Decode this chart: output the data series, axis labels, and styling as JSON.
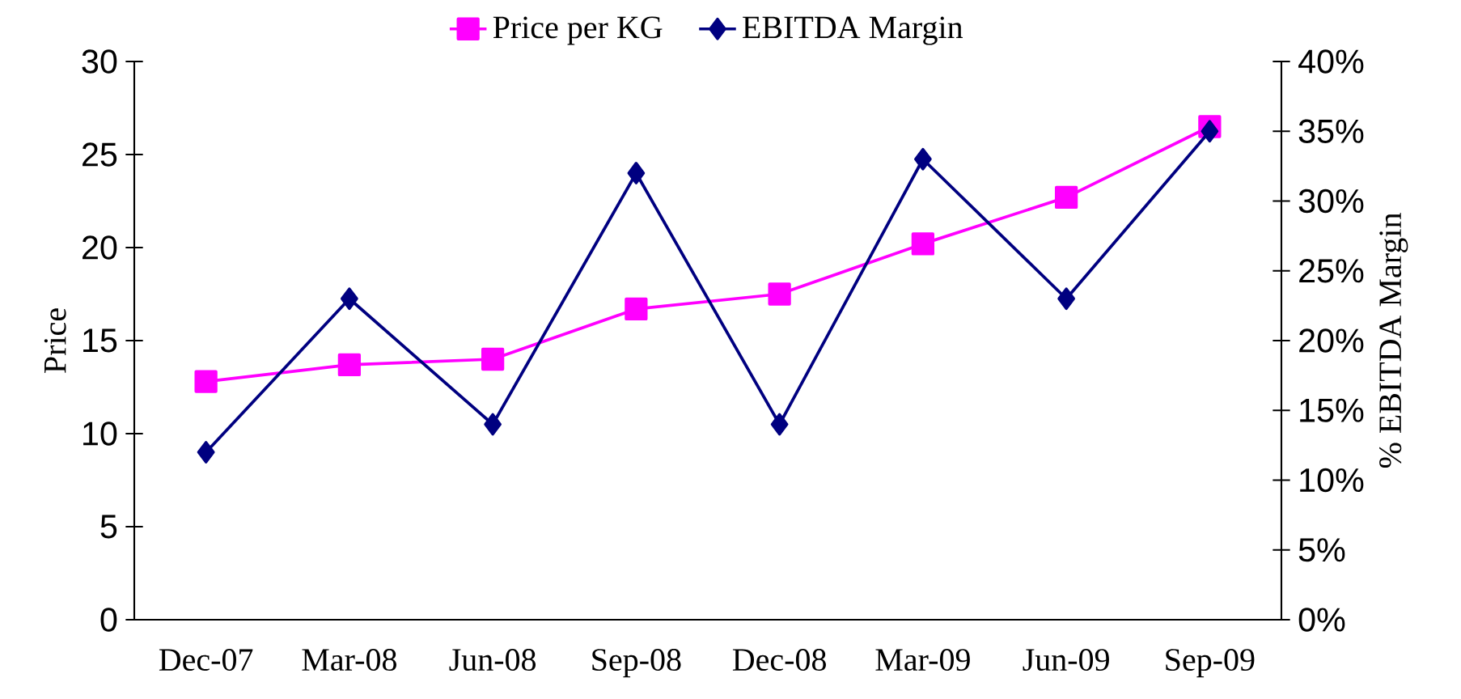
{
  "chart_data": {
    "type": "line",
    "categories": [
      "Dec-07",
      "Mar-08",
      "Jun-08",
      "Sep-08",
      "Dec-08",
      "Mar-09",
      "Jun-09",
      "Sep-09"
    ],
    "ylabel": "Price",
    "y2label": "% EBITDA Margin",
    "ylim": [
      0,
      30
    ],
    "yticks": [
      0,
      5,
      10,
      15,
      20,
      25,
      30
    ],
    "y2lim": [
      0,
      40
    ],
    "y2ticks": [
      {
        "value": 0,
        "label": "0%"
      },
      {
        "value": 5,
        "label": "5%"
      },
      {
        "value": 10,
        "label": "10%"
      },
      {
        "value": 15,
        "label": "15%"
      },
      {
        "value": 20,
        "label": "20%"
      },
      {
        "value": 25,
        "label": "25%"
      },
      {
        "value": 30,
        "label": "30%"
      },
      {
        "value": 35,
        "label": "35%"
      },
      {
        "value": 40,
        "label": "40%"
      }
    ],
    "legend": "top",
    "grid": false,
    "series": [
      {
        "name": "Price per KG",
        "color": "#ff00ff",
        "marker": "square",
        "values": [
          12.8,
          13.7,
          14.0,
          16.7,
          17.5,
          20.2,
          22.7,
          26.5
        ]
      },
      {
        "name": "EBITDA Margin",
        "color": "#000080",
        "marker": "diamond",
        "axis": "y2",
        "values": [
          12,
          23,
          14,
          32,
          14,
          33,
          23,
          35
        ]
      }
    ]
  }
}
